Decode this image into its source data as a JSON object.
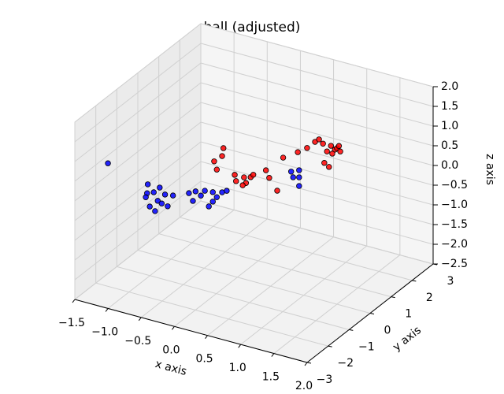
{
  "chart_data": {
    "type": "scatter3d",
    "title": "ball (adjusted)",
    "xlabel": "x axis",
    "ylabel": "y axis",
    "zlabel": "z axis",
    "xlim": [
      -1.5,
      2.0
    ],
    "ylim": [
      -3,
      3
    ],
    "zlim": [
      -2.5,
      2.0
    ],
    "xticks": [
      {
        "value": -1.5,
        "label": "−1.5"
      },
      {
        "value": -1.0,
        "label": "−1.0"
      },
      {
        "value": -0.5,
        "label": "−0.5"
      },
      {
        "value": 0,
        "label": "0.0"
      },
      0.5,
      {
        "value": 1,
        "label": "1.0"
      },
      1.5,
      {
        "value": 2,
        "label": "2.0"
      }
    ],
    "yticks": [
      {
        "value": -3,
        "label": "−3"
      },
      {
        "value": -2,
        "label": "−2"
      },
      {
        "value": -1,
        "label": "−1"
      },
      0,
      1,
      2,
      3
    ],
    "zticks": [
      {
        "value": -2.5,
        "label": "−2.5"
      },
      {
        "value": -2.0,
        "label": "−2.0"
      },
      {
        "value": -1.5,
        "label": "−1.5"
      },
      {
        "value": -1.0,
        "label": "−1.0"
      },
      {
        "value": -0.5,
        "label": "−0.5"
      },
      {
        "value": 0,
        "label": "0.0"
      },
      0.5,
      {
        "value": 1,
        "label": "1.0"
      },
      1.5,
      {
        "value": 2,
        "label": "2.0"
      }
    ],
    "grid": true,
    "series": [
      {
        "color": "blue",
        "x": [
          -1.95,
          -1.35,
          -1.36,
          -1.38,
          -1.26,
          -1.17,
          -1.09,
          -1.2,
          -1.32,
          -1.24,
          -1.14,
          -0.97,
          -1.05,
          -0.73,
          -0.63,
          -0.67,
          -0.55,
          -0.49,
          -0.37,
          -0.31,
          -0.37,
          -0.43,
          -0.23,
          -0.16,
          0.81,
          0.93,
          0.93,
          0.84,
          0.93
        ],
        "y": [
          0,
          0,
          0,
          0,
          0,
          0,
          0,
          0,
          0,
          0,
          0,
          0,
          0,
          0,
          0,
          0,
          0,
          0,
          0,
          0,
          0,
          0,
          0,
          0,
          0,
          0,
          0,
          0,
          0
        ],
        "z": [
          -0.5,
          -0.76,
          -0.99,
          -1.1,
          -0.92,
          -0.76,
          -0.9,
          -1.11,
          -1.31,
          -1.39,
          -1.15,
          -0.87,
          -1.18,
          -0.7,
          -0.61,
          -0.87,
          -0.68,
          -0.53,
          -0.51,
          -0.61,
          -0.75,
          -0.9,
          -0.45,
          -0.38,
          0.55,
          0.64,
          0.24,
          0.42,
          0.46
        ]
      },
      {
        "color": "red",
        "x": [
          -0.35,
          -0.21,
          -0.23,
          -0.31,
          -0.04,
          -0.02,
          0.1,
          0.2,
          0.13,
          0.08,
          0.43,
          0.48,
          0.6,
          0.24,
          0.69,
          0.91,
          1.05,
          1.17,
          1.23,
          1.29,
          1.31,
          1.38,
          1.41,
          1.47,
          1.43,
          1.5,
          1.55,
          1.53,
          1.35
        ],
        "y": [
          0,
          0,
          0,
          0,
          0,
          0,
          0,
          0,
          0,
          0,
          0,
          0,
          0,
          0,
          0,
          0,
          0,
          0,
          0,
          0,
          0,
          0,
          0,
          0,
          0,
          0,
          0,
          0,
          0
        ],
        "z": [
          0.28,
          0.68,
          0.47,
          0.09,
          0.08,
          -0.07,
          0.08,
          0.13,
          -0.05,
          -0.13,
          0.41,
          0.24,
          -0.03,
          0.21,
          0.85,
          1.09,
          1.26,
          1.47,
          1.56,
          1.48,
          1.0,
          0.93,
          1.48,
          1.41,
          1.29,
          1.46,
          1.4,
          1.53,
          1.31
        ]
      }
    ]
  }
}
